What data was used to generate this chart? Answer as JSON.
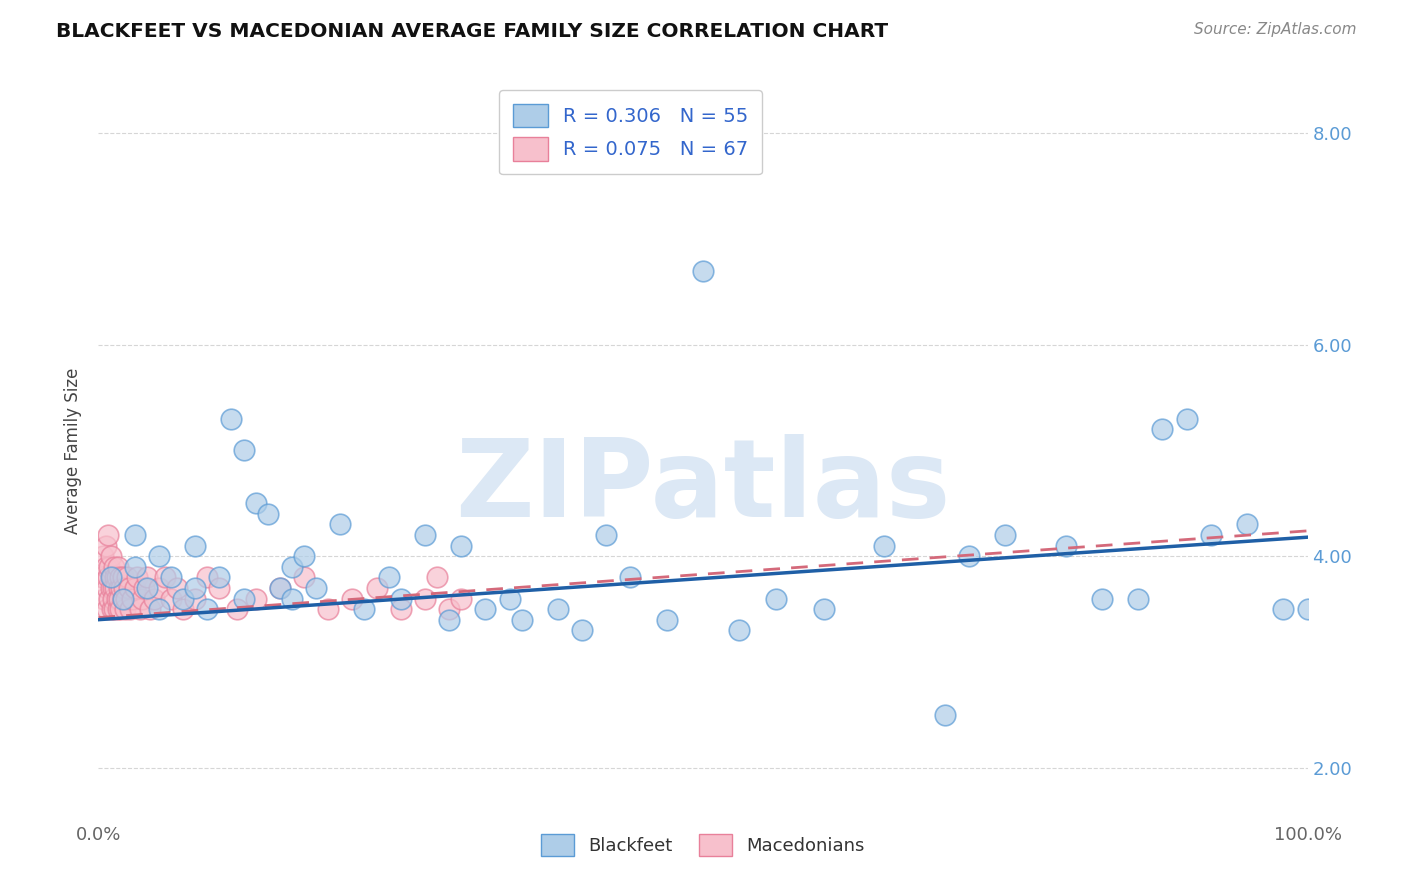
{
  "title": "BLACKFEET VS MACEDONIAN AVERAGE FAMILY SIZE CORRELATION CHART",
  "source_text": "Source: ZipAtlas.com",
  "ylabel": "Average Family Size",
  "xlim": [
    0,
    1
  ],
  "ylim": [
    1.5,
    8.5
  ],
  "yticks": [
    2.0,
    4.0,
    6.0,
    8.0
  ],
  "yticklabels_right": [
    "2.00",
    "4.00",
    "6.00",
    "8.00"
  ],
  "blackfeet_color": "#aecde8",
  "blackfeet_edge": "#5b9bd5",
  "macedonian_color": "#f7c0cc",
  "macedonian_edge": "#e8809a",
  "trend_blue": "#1f5fa6",
  "trend_pink": "#d4697a",
  "background_color": "#ffffff",
  "grid_color": "#cccccc",
  "watermark_text": "ZIPatlas",
  "watermark_color": "#dce8f5",
  "title_color": "#111111",
  "blackfeet_R": 0.306,
  "blackfeet_N": 55,
  "macedonian_R": 0.075,
  "macedonian_N": 67,
  "blackfeet_x": [
    0.01,
    0.02,
    0.03,
    0.03,
    0.04,
    0.05,
    0.05,
    0.06,
    0.07,
    0.08,
    0.08,
    0.09,
    0.1,
    0.11,
    0.12,
    0.12,
    0.13,
    0.14,
    0.15,
    0.16,
    0.16,
    0.17,
    0.18,
    0.2,
    0.22,
    0.24,
    0.25,
    0.27,
    0.29,
    0.3,
    0.32,
    0.34,
    0.35,
    0.38,
    0.4,
    0.42,
    0.44,
    0.47,
    0.5,
    0.53,
    0.56,
    0.6,
    0.65,
    0.7,
    0.72,
    0.75,
    0.8,
    0.83,
    0.86,
    0.88,
    0.9,
    0.92,
    0.95,
    0.98,
    1.0
  ],
  "blackfeet_y": [
    3.8,
    3.6,
    3.9,
    4.2,
    3.7,
    3.5,
    4.0,
    3.8,
    3.6,
    3.7,
    4.1,
    3.5,
    3.8,
    5.3,
    5.0,
    3.6,
    4.5,
    4.4,
    3.7,
    3.9,
    3.6,
    4.0,
    3.7,
    4.3,
    3.5,
    3.8,
    3.6,
    4.2,
    3.4,
    4.1,
    3.5,
    3.6,
    3.4,
    3.5,
    3.3,
    4.2,
    3.8,
    3.4,
    6.7,
    3.3,
    3.6,
    3.5,
    4.1,
    2.5,
    4.0,
    4.2,
    4.1,
    3.6,
    3.6,
    5.2,
    5.3,
    4.2,
    4.3,
    3.5,
    3.5
  ],
  "macedonian_x": [
    0.003,
    0.004,
    0.005,
    0.006,
    0.006,
    0.007,
    0.007,
    0.008,
    0.008,
    0.009,
    0.009,
    0.01,
    0.01,
    0.011,
    0.011,
    0.012,
    0.012,
    0.013,
    0.013,
    0.014,
    0.014,
    0.015,
    0.015,
    0.016,
    0.016,
    0.017,
    0.017,
    0.018,
    0.018,
    0.019,
    0.02,
    0.02,
    0.021,
    0.022,
    0.023,
    0.024,
    0.025,
    0.026,
    0.028,
    0.03,
    0.032,
    0.034,
    0.036,
    0.038,
    0.04,
    0.043,
    0.046,
    0.05,
    0.055,
    0.06,
    0.065,
    0.07,
    0.08,
    0.09,
    0.1,
    0.115,
    0.13,
    0.15,
    0.17,
    0.19,
    0.21,
    0.23,
    0.25,
    0.27,
    0.28,
    0.29,
    0.3
  ],
  "macedonian_y": [
    3.8,
    4.0,
    3.6,
    3.9,
    4.1,
    3.7,
    3.5,
    3.8,
    4.2,
    3.6,
    3.9,
    3.7,
    4.0,
    3.5,
    3.8,
    3.7,
    3.6,
    3.9,
    3.5,
    3.8,
    3.7,
    3.6,
    3.8,
    3.5,
    3.9,
    3.7,
    3.6,
    3.8,
    3.5,
    3.7,
    3.6,
    3.8,
    3.7,
    3.5,
    3.6,
    3.8,
    3.7,
    3.5,
    3.6,
    3.7,
    3.8,
    3.5,
    3.6,
    3.7,
    3.8,
    3.5,
    3.6,
    3.7,
    3.8,
    3.6,
    3.7,
    3.5,
    3.6,
    3.8,
    3.7,
    3.5,
    3.6,
    3.7,
    3.8,
    3.5,
    3.6,
    3.7,
    3.5,
    3.6,
    3.8,
    3.5,
    3.6
  ]
}
